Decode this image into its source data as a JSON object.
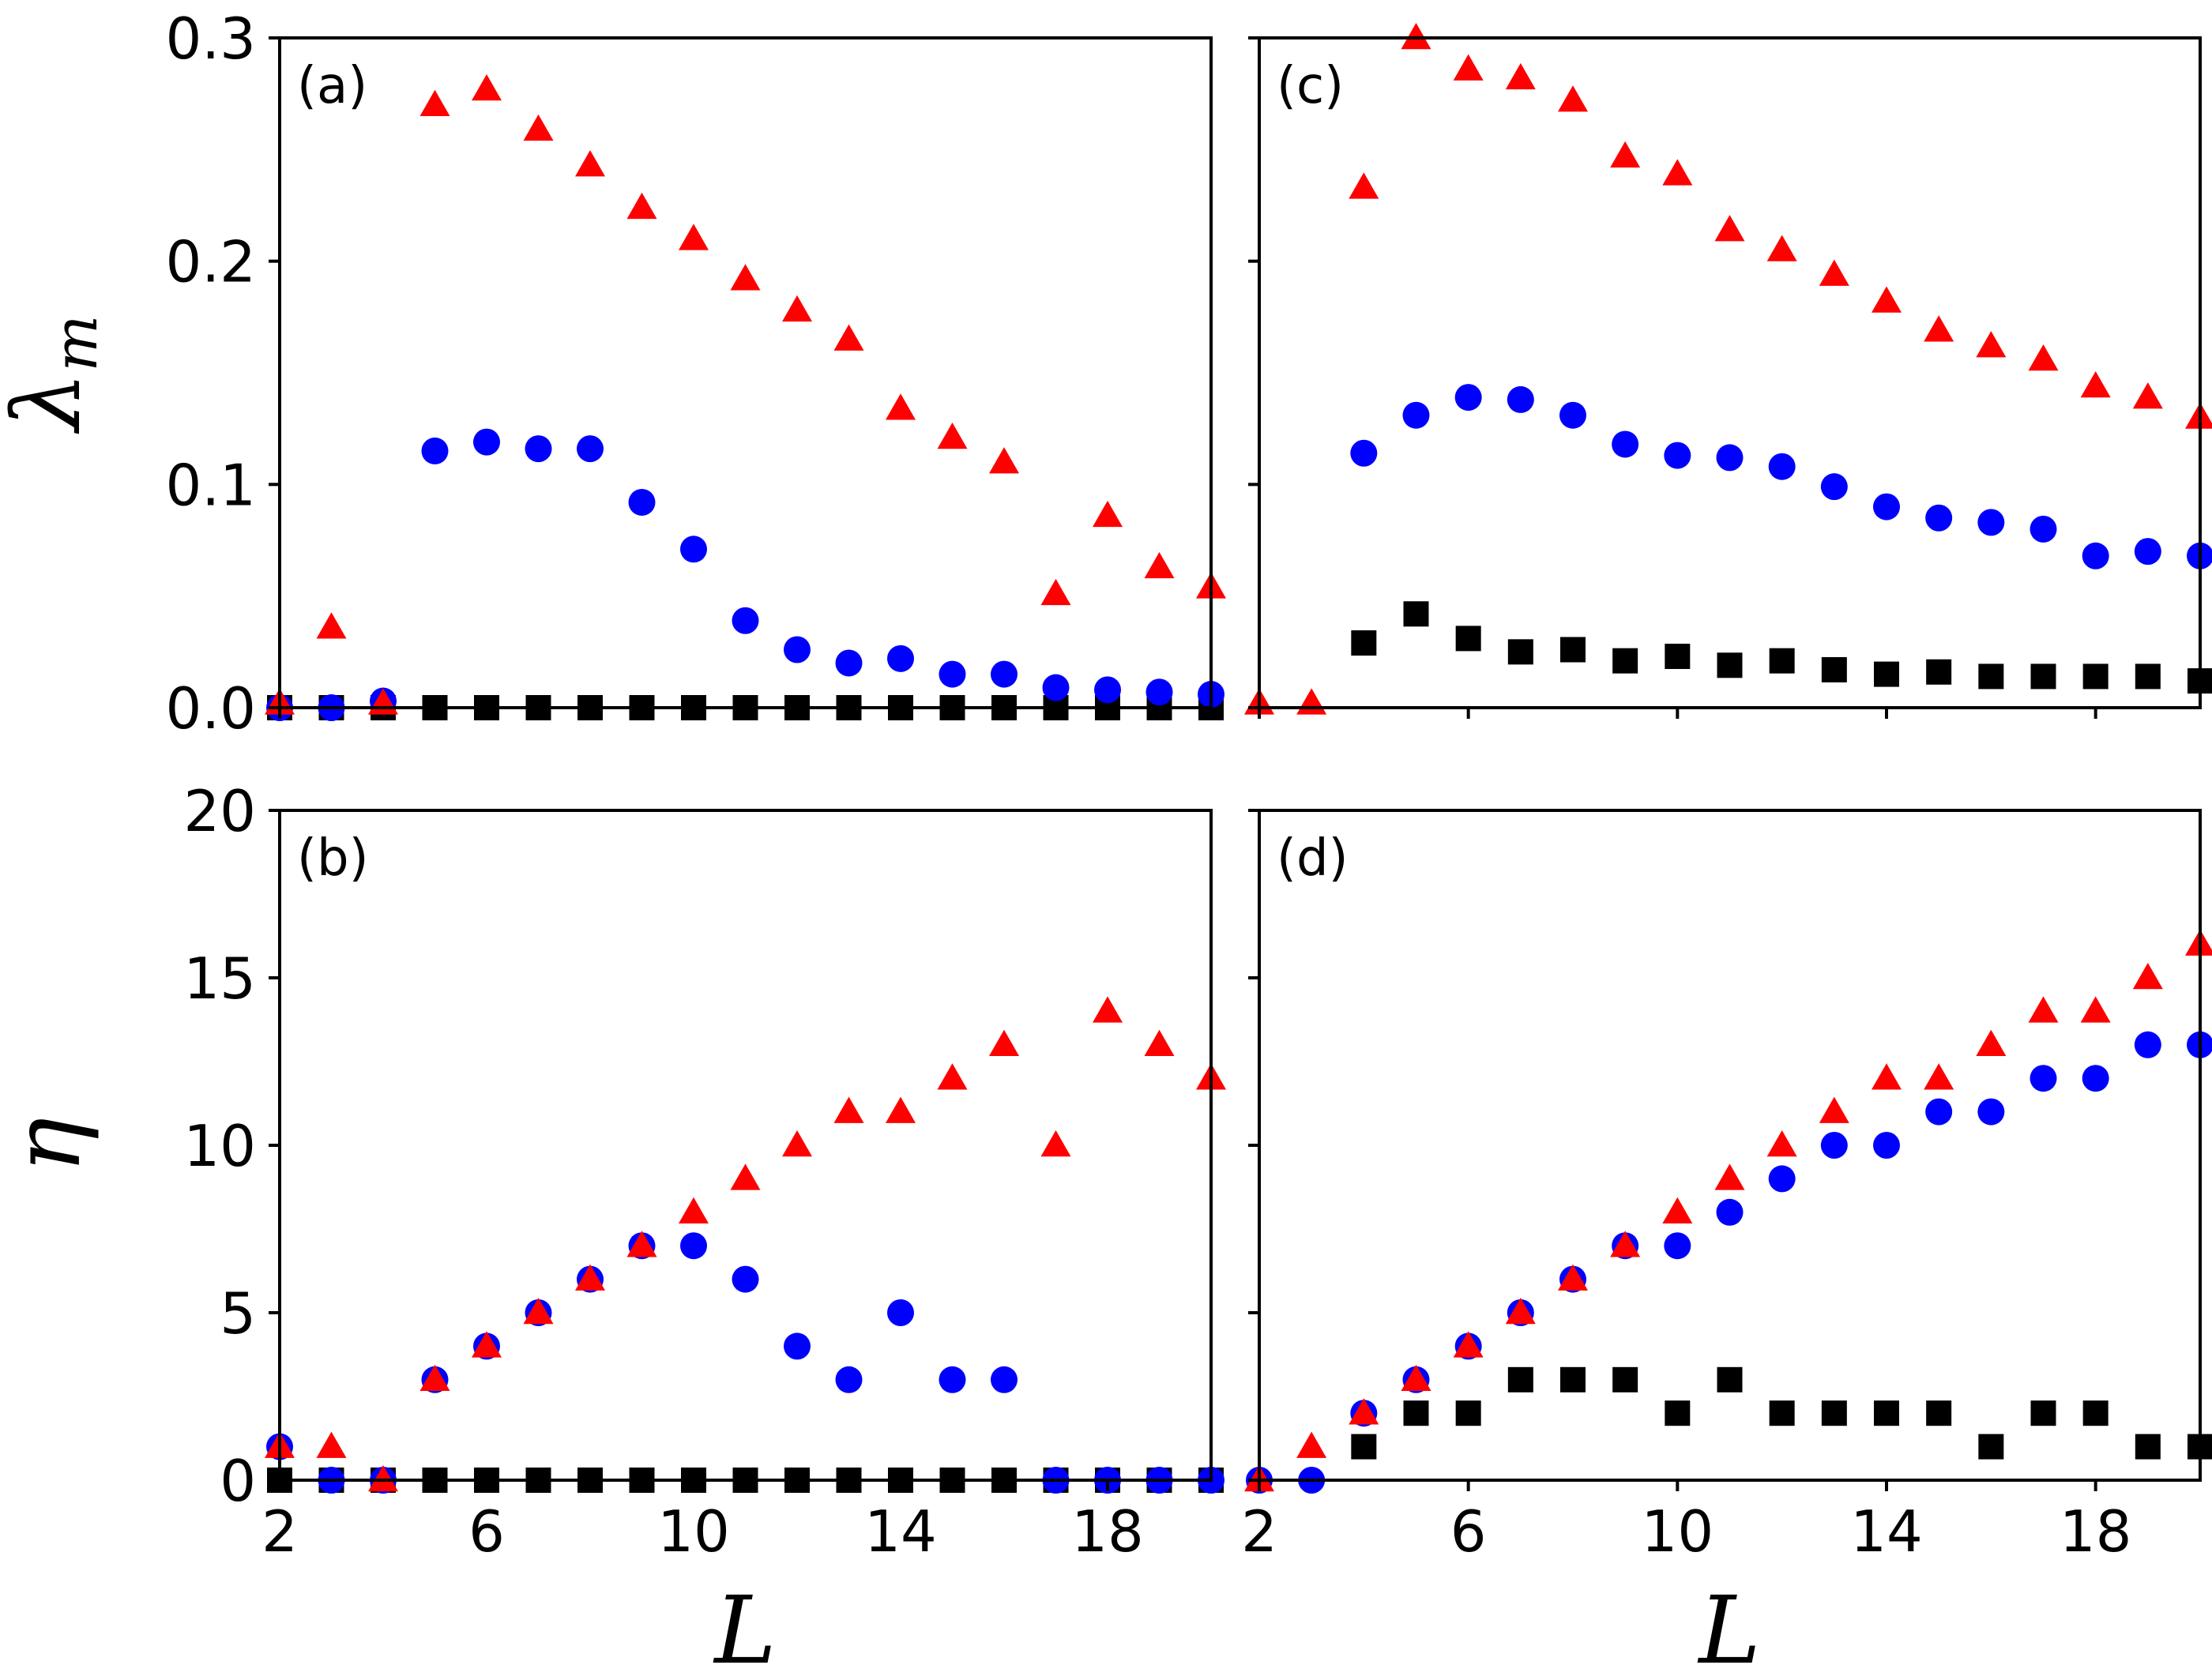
{
  "chart_data": [
    {
      "id": "a",
      "type": "scatter",
      "panel_label": "(a)",
      "ylabel": "λ",
      "ylabel_subscript": "m",
      "xlabel": "",
      "xlim": [
        2,
        20
      ],
      "ylim": [
        0,
        0.3
      ],
      "xticks": [
        "2",
        "6",
        "10",
        "14",
        "18"
      ],
      "yticks": [
        "0.0",
        "0.1",
        "0.2",
        "0.3"
      ],
      "show_xtick_labels": false,
      "show_ytick_labels": true,
      "x": [
        2,
        3,
        4,
        5,
        6,
        7,
        8,
        9,
        10,
        11,
        12,
        13,
        14,
        15,
        16,
        17,
        18,
        19,
        20
      ],
      "series": [
        {
          "name": "square",
          "marker": "square",
          "color": "#000000",
          "values": [
            0,
            0,
            0,
            0,
            0,
            0,
            0,
            0,
            0,
            0,
            0,
            0,
            0,
            0,
            0,
            0,
            0,
            0,
            0
          ]
        },
        {
          "name": "circle",
          "marker": "circle",
          "color": "#0000ff",
          "values": [
            0,
            0,
            0.003,
            0.115,
            0.119,
            0.116,
            0.116,
            0.092,
            0.071,
            0.039,
            0.026,
            0.02,
            0.022,
            0.015,
            0.015,
            0.009,
            0.008,
            0.007,
            0.006
          ]
        },
        {
          "name": "triangle",
          "marker": "triangle",
          "color": "#ff0000",
          "values": [
            0.002,
            0.036,
            0.002,
            0.27,
            0.277,
            0.259,
            0.243,
            0.224,
            0.21,
            0.192,
            0.178,
            0.165,
            0.134,
            0.121,
            0.11,
            0.051,
            0.086,
            0.063,
            0.054
          ]
        }
      ]
    },
    {
      "id": "c",
      "type": "scatter",
      "panel_label": "(c)",
      "ylabel": "",
      "xlabel": "",
      "xlim": [
        2,
        20
      ],
      "ylim": [
        0,
        0.3
      ],
      "xticks": [
        "2",
        "6",
        "10",
        "14",
        "18"
      ],
      "yticks": [
        "0.0",
        "0.1",
        "0.2",
        "0.3"
      ],
      "show_xtick_labels": false,
      "show_ytick_labels": false,
      "x": [
        2,
        3,
        4,
        5,
        6,
        7,
        8,
        9,
        10,
        11,
        12,
        13,
        14,
        15,
        16,
        17,
        18,
        19,
        20
      ],
      "series": [
        {
          "name": "square",
          "marker": "square",
          "color": "#000000",
          "values": [
            null,
            null,
            0.029,
            0.042,
            0.031,
            0.025,
            0.026,
            0.021,
            0.023,
            0.019,
            0.021,
            0.017,
            0.015,
            0.016,
            0.014,
            0.014,
            0.014,
            0.014,
            0.012
          ]
        },
        {
          "name": "circle",
          "marker": "circle",
          "color": "#0000ff",
          "values": [
            null,
            null,
            0.114,
            0.131,
            0.139,
            0.138,
            0.131,
            0.118,
            0.113,
            0.112,
            0.108,
            0.099,
            0.09,
            0.085,
            0.083,
            0.08,
            0.068,
            0.07,
            0.068
          ]
        },
        {
          "name": "triangle",
          "marker": "triangle",
          "color": "#ff0000",
          "values": [
            0.002,
            0.002,
            0.233,
            0.3,
            0.286,
            0.282,
            0.272,
            0.247,
            0.239,
            0.214,
            0.205,
            0.194,
            0.182,
            0.169,
            0.162,
            0.156,
            0.144,
            0.139,
            0.13
          ]
        }
      ]
    },
    {
      "id": "b",
      "type": "scatter",
      "panel_label": "(b)",
      "ylabel": "η",
      "xlabel": "L",
      "xlim": [
        2,
        20
      ],
      "ylim": [
        0,
        20
      ],
      "xticks": [
        "2",
        "6",
        "10",
        "14",
        "18"
      ],
      "yticks": [
        "0",
        "5",
        "10",
        "15",
        "20"
      ],
      "show_xtick_labels": true,
      "show_ytick_labels": true,
      "x": [
        2,
        3,
        4,
        5,
        6,
        7,
        8,
        9,
        10,
        11,
        12,
        13,
        14,
        15,
        16,
        17,
        18,
        19,
        20
      ],
      "series": [
        {
          "name": "square",
          "marker": "square",
          "color": "#000000",
          "values": [
            0,
            0,
            0,
            0,
            0,
            0,
            0,
            0,
            0,
            0,
            0,
            0,
            0,
            0,
            0,
            0,
            0,
            0,
            0
          ]
        },
        {
          "name": "circle",
          "marker": "circle",
          "color": "#0000ff",
          "values": [
            1,
            0,
            0,
            3,
            4,
            5,
            6,
            7,
            7,
            6,
            4,
            3,
            5,
            3,
            3,
            0,
            0,
            0,
            0
          ]
        },
        {
          "name": "triangle",
          "marker": "triangle",
          "color": "#ff0000",
          "values": [
            1,
            1,
            0,
            3,
            4,
            5,
            6,
            7,
            8,
            9,
            10,
            11,
            11,
            12,
            13,
            10,
            14,
            13,
            12
          ]
        }
      ]
    },
    {
      "id": "d",
      "type": "scatter",
      "panel_label": "(d)",
      "ylabel": "",
      "xlabel": "L",
      "xlim": [
        2,
        20
      ],
      "ylim": [
        0,
        20
      ],
      "xticks": [
        "2",
        "6",
        "10",
        "14",
        "18"
      ],
      "yticks": [
        "0",
        "5",
        "10",
        "15",
        "20"
      ],
      "show_xtick_labels": true,
      "show_ytick_labels": false,
      "x": [
        2,
        3,
        4,
        5,
        6,
        7,
        8,
        9,
        10,
        11,
        12,
        13,
        14,
        15,
        16,
        17,
        18,
        19,
        20
      ],
      "series": [
        {
          "name": "square",
          "marker": "square",
          "color": "#000000",
          "values": [
            null,
            null,
            1,
            2,
            2,
            3,
            3,
            3,
            2,
            3,
            2,
            2,
            2,
            2,
            1,
            2,
            2,
            1,
            1
          ]
        },
        {
          "name": "circle",
          "marker": "circle",
          "color": "#0000ff",
          "values": [
            0,
            0,
            2,
            3,
            4,
            5,
            6,
            7,
            7,
            8,
            9,
            10,
            10,
            11,
            11,
            12,
            12,
            13,
            13
          ]
        },
        {
          "name": "triangle",
          "marker": "triangle",
          "color": "#ff0000",
          "values": [
            0,
            1,
            2,
            3,
            4,
            5,
            6,
            7,
            8,
            9,
            10,
            11,
            12,
            12,
            13,
            14,
            14,
            15,
            16
          ]
        }
      ]
    }
  ]
}
